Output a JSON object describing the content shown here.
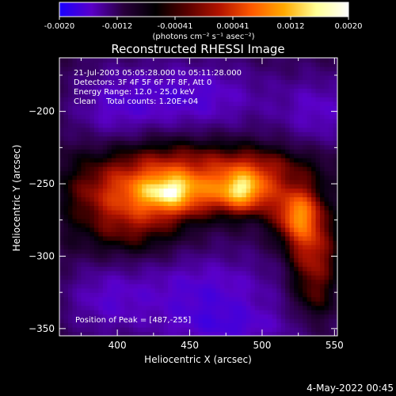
{
  "colorbar": {
    "ticks": [
      "-0.0020",
      "-0.0012",
      "-0.00041",
      "0.00041",
      "0.0012",
      "0.0020"
    ],
    "units": "(photons cm⁻² s⁻¹ asec⁻²)",
    "colors": [
      "#1a00ff",
      "#5a00c8",
      "#28003c",
      "#000000",
      "#5a0000",
      "#b41400",
      "#ff5a00",
      "#ffaa00",
      "#ffff96",
      "#ffffff"
    ]
  },
  "footer": {
    "date": "4-May-2022 00:45"
  },
  "chart_data": {
    "type": "heatmap",
    "title": "Reconstructed RHESSI Image",
    "xlabel": "Heliocentric X (arcsec)",
    "ylabel": "Heliocentric Y (arcsec)",
    "xlim": [
      360,
      552
    ],
    "ylim": [
      -355,
      -163
    ],
    "xticks": [
      400,
      450,
      500,
      550
    ],
    "yticks": [
      -200,
      -250,
      -300,
      -350
    ],
    "info_lines": [
      "21-Jul-2003 05:05:28.000 to 05:11:28.000",
      "Detectors: 3F 4F 5F 6F 7F 8F, Att 0",
      "Energy Range: 12.0 - 25.0 keV",
      "Clean    Total counts: 1.20E+04"
    ],
    "peak_label": "Position of Peak = [487,-255]",
    "peak": [
      487,
      -255
    ],
    "vmin": -0.002,
    "vmax": 0.002,
    "sources": [
      {
        "x": 440,
        "y": -255,
        "flux": 0.00195,
        "sx": 20,
        "sy": 12
      },
      {
        "x": 487,
        "y": -255,
        "flux": 0.002,
        "sx": 15,
        "sy": 11
      },
      {
        "x": 525,
        "y": -270,
        "flux": 0.0017,
        "sx": 12,
        "sy": 14
      },
      {
        "x": 400,
        "y": -255,
        "flux": 0.0011,
        "sx": 26,
        "sy": 16
      },
      {
        "x": 500,
        "y": -238,
        "flux": 0.0007,
        "sx": 30,
        "sy": 10
      },
      {
        "x": 440,
        "y": -230,
        "flux": 0.0006,
        "sx": 40,
        "sy": 12
      },
      {
        "x": 535,
        "y": -300,
        "flux": 0.0011,
        "sx": 12,
        "sy": 18
      },
      {
        "x": 410,
        "y": -283,
        "flux": 0.00065,
        "sx": 25,
        "sy": 14
      },
      {
        "x": 535,
        "y": -330,
        "flux": 0.0005,
        "sx": 10,
        "sy": 12
      }
    ],
    "negative_regions": [
      {
        "x": 450,
        "y": -190,
        "flux": -0.0009,
        "sx": 40,
        "sy": 18
      },
      {
        "x": 395,
        "y": -200,
        "flux": -0.0005,
        "sx": 20,
        "sy": 20
      },
      {
        "x": 460,
        "y": -325,
        "flux": -0.0009,
        "sx": 40,
        "sy": 20
      },
      {
        "x": 390,
        "y": -330,
        "flux": -0.0006,
        "sx": 20,
        "sy": 18
      },
      {
        "x": 540,
        "y": -200,
        "flux": -0.0007,
        "sx": 20,
        "sy": 18
      },
      {
        "x": 480,
        "y": -350,
        "flux": -0.0006,
        "sx": 35,
        "sy": 10
      }
    ]
  }
}
